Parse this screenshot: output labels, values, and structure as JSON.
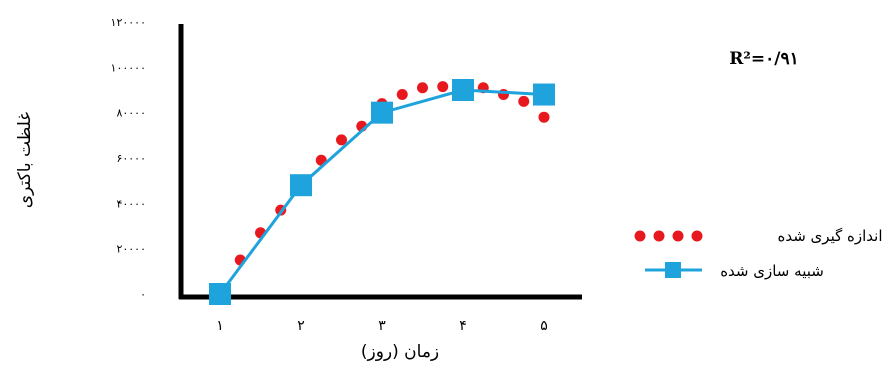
{
  "chart_data": {
    "type": "line",
    "xlabel": "زمان (روز)",
    "ylabel": "غلظت باکتری",
    "ylim": [
      0,
      120000
    ],
    "categories": [
      "۱",
      "۲",
      "۳",
      "۴",
      "۵"
    ],
    "yticks": [
      0,
      20000,
      40000,
      60000,
      80000,
      100000,
      120000
    ],
    "ytick_labels": [
      "۰",
      "۲۰۰۰۰",
      "۴۰۰۰۰",
      "۶۰۰۰۰",
      "۸۰۰۰۰",
      "۱۰۰۰۰۰",
      "۱۲۰۰۰۰"
    ],
    "annotation": "R²=۰/۹۱",
    "legend_position": "right",
    "series": [
      {
        "name": "اندازه گیری شده",
        "style": "dotted",
        "color": "#e8191e",
        "x": [
          1,
          1.25,
          1.5,
          1.75,
          2,
          2.25,
          2.5,
          2.75,
          3,
          3.25,
          3.5,
          3.75,
          4,
          4.25,
          4.5,
          4.75,
          5
        ],
        "values": [
          0,
          15000,
          27000,
          37000,
          50000,
          59000,
          68000,
          74000,
          84000,
          88000,
          91000,
          91500,
          92000,
          91000,
          88000,
          85000,
          78000
        ]
      },
      {
        "name": "شبیه سازی شده",
        "style": "line-square",
        "color": "#1fa3dc",
        "x": [
          1,
          2,
          3,
          4,
          5
        ],
        "values": [
          0,
          48000,
          80000,
          90000,
          88000
        ]
      }
    ]
  }
}
